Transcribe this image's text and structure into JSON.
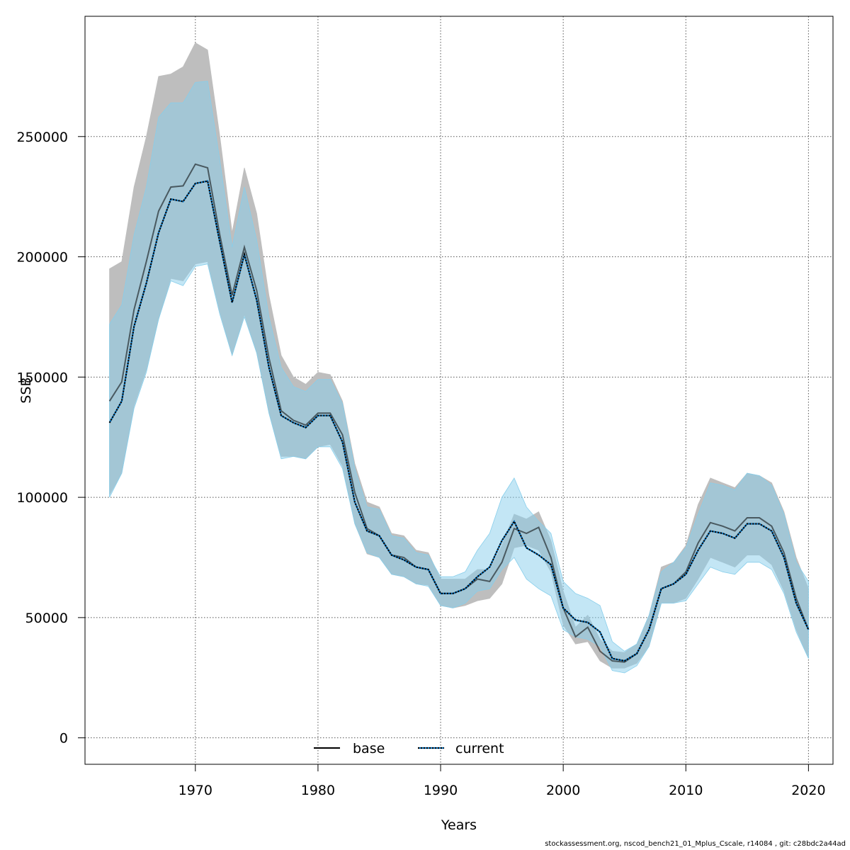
{
  "chart_data": {
    "type": "line",
    "xlabel": "Years",
    "ylabel": "SSB",
    "xlim": [
      1961,
      2022
    ],
    "ylim": [
      -11000,
      300000
    ],
    "xticks": [
      1970,
      1980,
      1990,
      2000,
      2010,
      2020
    ],
    "yticks": [
      0,
      50000,
      100000,
      150000,
      200000,
      250000
    ],
    "grid": true,
    "legend_position": "bottom-center",
    "x": [
      1963,
      1964,
      1965,
      1966,
      1967,
      1968,
      1969,
      1970,
      1971,
      1972,
      1973,
      1974,
      1975,
      1976,
      1977,
      1978,
      1979,
      1980,
      1981,
      1982,
      1983,
      1984,
      1985,
      1986,
      1987,
      1988,
      1989,
      1990,
      1991,
      1992,
      1993,
      1994,
      1995,
      1996,
      1997,
      1998,
      1999,
      2000,
      2001,
      2002,
      2003,
      2004,
      2005,
      2006,
      2007,
      2008,
      2009,
      2010,
      2011,
      2012,
      2013,
      2014,
      2015,
      2016,
      2017,
      2018,
      2019,
      2020
    ],
    "series": [
      {
        "name": "base",
        "color": "#000000",
        "line_style": "solid",
        "band_color": "#bebebe",
        "values": [
          140000,
          148000,
          178000,
          198000,
          219000,
          229000,
          229500,
          238500,
          237000,
          209000,
          184000,
          204000,
          186000,
          158000,
          136000,
          132000,
          130000,
          135000,
          135000,
          126000,
          102000,
          87000,
          84000,
          76000,
          75000,
          71000,
          70000,
          60000,
          60000,
          62000,
          66000,
          65000,
          73000,
          87000,
          85000,
          87500,
          75000,
          54000,
          42000,
          46000,
          36000,
          32000,
          31500,
          35000,
          45000,
          62000,
          64000,
          69000,
          81000,
          89500,
          88000,
          86000,
          91500,
          91500,
          88000,
          77000,
          58000,
          45000
        ],
        "lower": [
          101000,
          110000,
          138000,
          153000,
          174000,
          191000,
          190000,
          197000,
          198000,
          177000,
          159000,
          176000,
          160000,
          135000,
          117000,
          117000,
          116000,
          121000,
          122000,
          113000,
          89000,
          76500,
          75000,
          68000,
          67000,
          64000,
          63500,
          55000,
          54000,
          55000,
          57000,
          58000,
          64000,
          79000,
          80000,
          78000,
          69000,
          47000,
          39000,
          40000,
          32000,
          29000,
          29000,
          31000,
          38000,
          56000,
          56000,
          58000,
          66000,
          75000,
          73000,
          71000,
          76000,
          76000,
          72000,
          61000,
          45000,
          33000
        ],
        "upper": [
          195000,
          198000,
          229000,
          250000,
          275000,
          276000,
          279000,
          289000,
          286000,
          250000,
          210000,
          237000,
          218000,
          184000,
          159000,
          150000,
          147000,
          152000,
          151000,
          140000,
          114000,
          98000,
          96000,
          85000,
          84000,
          78000,
          77000,
          66000,
          66000,
          66000,
          70000,
          70000,
          80000,
          93000,
          91000,
          94000,
          82000,
          61000,
          46000,
          51000,
          41000,
          36000,
          35500,
          39000,
          51000,
          71000,
          73000,
          80000,
          97000,
          108000,
          106000,
          104000,
          110000,
          109000,
          106000,
          94000,
          75000,
          62000
        ]
      },
      {
        "name": "current",
        "color": "#000000",
        "line_style": "dotted",
        "band_color": "#87ceeb",
        "values": [
          131000,
          140000,
          171000,
          189000,
          210000,
          224000,
          223000,
          230500,
          231500,
          206000,
          181000,
          201000,
          182000,
          154000,
          134000,
          131000,
          129000,
          134000,
          134000,
          123000,
          98000,
          86000,
          84000,
          76000,
          74000,
          71000,
          70000,
          60000,
          60000,
          62000,
          67000,
          71000,
          82000,
          90000,
          79000,
          76000,
          72000,
          54000,
          49000,
          48000,
          44000,
          33000,
          32000,
          35000,
          45000,
          62000,
          64000,
          68000,
          78000,
          86000,
          85000,
          83000,
          89000,
          89000,
          86000,
          75000,
          56000,
          45000
        ],
        "lower": [
          100000,
          110000,
          137000,
          152000,
          174000,
          190000,
          188000,
          196000,
          197000,
          176000,
          159000,
          175000,
          160000,
          135000,
          116000,
          117000,
          116000,
          121000,
          121000,
          112000,
          89000,
          77000,
          75000,
          68000,
          67000,
          64000,
          63000,
          55000,
          54000,
          56000,
          61000,
          62000,
          70000,
          75000,
          66000,
          62000,
          59000,
          45000,
          42000,
          41000,
          38000,
          28000,
          27000,
          30000,
          38000,
          56000,
          56000,
          57000,
          64000,
          71000,
          69000,
          68000,
          73000,
          73000,
          70000,
          60000,
          44000,
          33000
        ],
        "upper": [
          172000,
          180000,
          209000,
          229000,
          258000,
          264000,
          264000,
          272500,
          273000,
          240000,
          204000,
          229000,
          207000,
          175000,
          154000,
          146000,
          144000,
          149000,
          149000,
          139000,
          112000,
          96000,
          95000,
          84000,
          83000,
          77000,
          76000,
          67000,
          67000,
          69000,
          78000,
          85000,
          100000,
          108000,
          96000,
          90000,
          85000,
          65000,
          60000,
          58000,
          55000,
          40000,
          36000,
          39000,
          51000,
          69000,
          73000,
          79000,
          93000,
          106000,
          105000,
          103000,
          110000,
          109000,
          105000,
          93000,
          73000,
          65000
        ]
      }
    ]
  },
  "footer_text": "stockassessment.org, nscod_bench21_01_Mplus_Cscale, r14084 , git: c28bdc2a44ad"
}
